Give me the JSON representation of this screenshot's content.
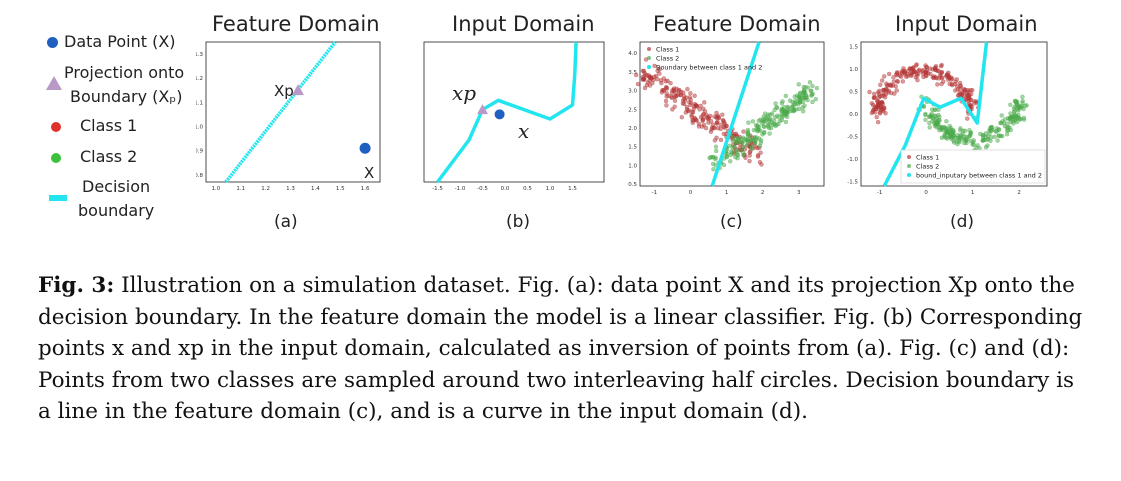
{
  "legend": {
    "data_point": "Data Point  (X)",
    "projection_line1": "Projection onto",
    "projection_line2": "Boundary (Xₚ)",
    "class1": "Class 1",
    "class2": "Class 2",
    "boundary_line1": "Decision",
    "boundary_line2": "boundary"
  },
  "panels": {
    "a": {
      "title": "Feature Domain",
      "sublabel": "(a)",
      "xp_label": "Xp",
      "x_label": "X"
    },
    "b": {
      "title": "Input Domain",
      "sublabel": "(b)",
      "xp_label": "xp",
      "x_label": "x"
    },
    "c": {
      "title": "Feature Domain",
      "sublabel": "(c)"
    },
    "d": {
      "title": "Input Domain",
      "sublabel": "(d)"
    }
  },
  "chart_data": [
    {
      "panel": "a",
      "type": "scatter",
      "title": "Feature Domain",
      "xticks": [
        "1.0",
        "1.1",
        "1.2",
        "1.3",
        "1.4",
        "1.5",
        "1.6"
      ],
      "yticks": [
        "0.8",
        "0.9",
        "1.0",
        "1.1",
        "1.2",
        "1.3"
      ],
      "xlim": [
        0.96,
        1.66
      ],
      "ylim": [
        0.77,
        1.35
      ],
      "series": [
        {
          "name": "Decision boundary",
          "type": "line",
          "x": [
            1.04,
            1.48
          ],
          "y": [
            0.76,
            1.37
          ]
        },
        {
          "name": "Projection onto Boundary (Xp)",
          "type": "marker",
          "x": [
            1.33
          ],
          "y": [
            1.15
          ]
        },
        {
          "name": "Data Point (X)",
          "type": "marker",
          "x": [
            1.6
          ],
          "y": [
            0.91
          ]
        }
      ]
    },
    {
      "panel": "b",
      "type": "line",
      "title": "Input Domain",
      "xticks": [
        "-1.5",
        "-1.0",
        "-0.5",
        "0.0",
        "0.5",
        "1.0",
        "1.5"
      ],
      "xlim": [
        -1.8,
        2.2
      ],
      "ylim": [
        -1.5,
        1.5
      ],
      "series": [
        {
          "name": "Decision boundary",
          "x": [
            -1.5,
            -0.8,
            -0.5,
            -0.15,
            1.0,
            1.5,
            1.55,
            1.58
          ],
          "y": [
            -1.5,
            -0.6,
            0.05,
            0.25,
            -0.15,
            0.15,
            0.8,
            1.6
          ]
        },
        {
          "name": "Projection onto Boundary (Xp)",
          "type": "marker",
          "x": [
            -0.5
          ],
          "y": [
            0.05
          ]
        },
        {
          "name": "Data Point (X)",
          "type": "marker",
          "x": [
            -0.12
          ],
          "y": [
            -0.05
          ]
        }
      ]
    },
    {
      "panel": "c",
      "type": "scatter",
      "title": "Feature Domain",
      "xticks": [
        "-1",
        "0",
        "1",
        "2",
        "3"
      ],
      "yticks": [
        "0.5",
        "1.0",
        "1.5",
        "2.0",
        "2.5",
        "3.0",
        "3.5",
        "4.0"
      ],
      "xlim": [
        -1.4,
        3.7
      ],
      "ylim": [
        0.45,
        4.3
      ],
      "legend": [
        "Class 1",
        "Class 2",
        "Boundary between class 1 and 2"
      ],
      "legend_position": "top-left",
      "series": [
        {
          "name": "Class 1",
          "cluster": "upper-left band",
          "color": "#b33434"
        },
        {
          "name": "Class 2",
          "cluster": "lower-right band",
          "color": "#4aa94a"
        },
        {
          "name": "Boundary between class 1 and 2",
          "type": "line",
          "x": [
            0.6,
            1.9
          ],
          "y": [
            0.45,
            4.3
          ],
          "color": "#22e5f0"
        }
      ]
    },
    {
      "panel": "d",
      "type": "scatter",
      "title": "Input Domain",
      "xticks": [
        "-1",
        "0",
        "1",
        "2"
      ],
      "yticks": [
        "-1.5",
        "-1.0",
        "-0.5",
        "0.0",
        "0.5",
        "1.0",
        "1.5"
      ],
      "xlim": [
        -1.4,
        2.6
      ],
      "ylim": [
        -1.6,
        1.6
      ],
      "legend": [
        "Class 1",
        "Class 2",
        "bound_inputary between class 1 and 2"
      ],
      "legend_position": "lower-right",
      "series": [
        {
          "name": "Class 1",
          "cluster": "upper half circle",
          "color": "#b33434"
        },
        {
          "name": "Class 2",
          "cluster": "lower half circle",
          "color": "#4aa94a"
        },
        {
          "name": "bound_inputary between class 1 and 2",
          "type": "line",
          "x": [
            -0.9,
            -0.45,
            -0.05,
            0.3,
            0.75,
            1.1,
            1.2,
            1.3
          ],
          "y": [
            -1.6,
            -0.7,
            0.35,
            0.15,
            0.35,
            -0.2,
            0.7,
            1.6
          ],
          "color": "#22e5f0"
        }
      ]
    }
  ],
  "caption": {
    "fig_label": "Fig. 3:",
    "text": " Illustration on a simulation dataset. Fig. (a): data point X and its projection Xp onto the decision boundary. In the feature domain the model is a linear classifier. Fig. (b) Corresponding points x and xp in the input domain, calculated as inversion of points from (a). Fig. (c) and (d): Points from two classes are sampled around two interleaving half circles. Decision boundary is a line in the feature domain (c), and is a curve in the input domain (d)."
  },
  "colors": {
    "boundary": "#22e5f0",
    "data_point": "#1f5fbf",
    "projection": "#b99ac7",
    "class1": "#e0322c",
    "class2": "#3cc13c"
  }
}
